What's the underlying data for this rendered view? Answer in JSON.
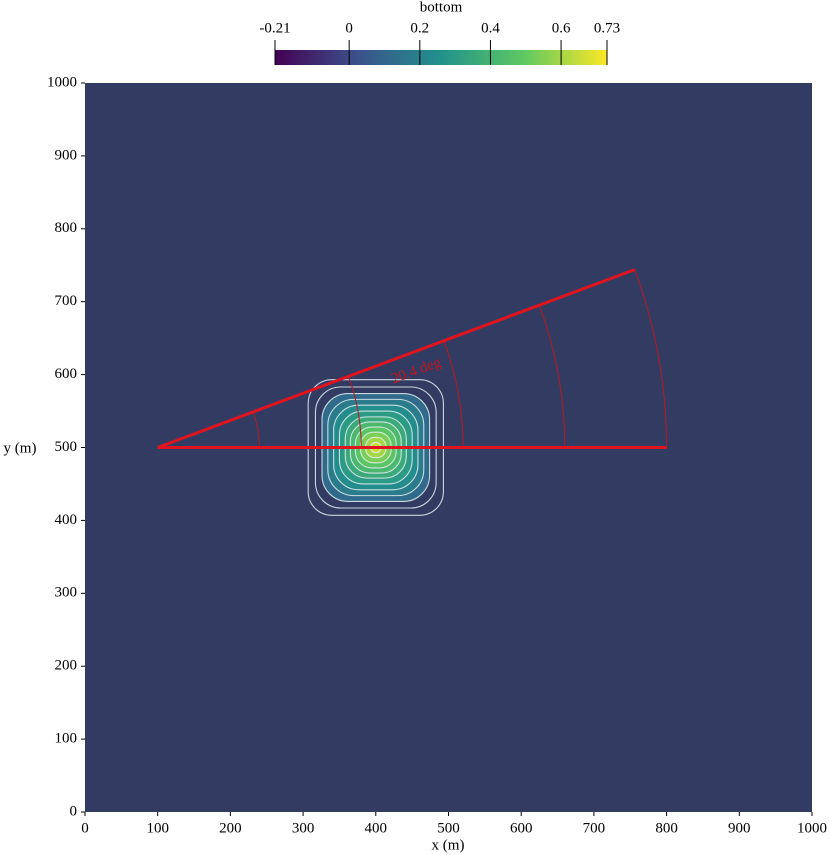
{
  "chart_data": {
    "type": "contour",
    "background": "#323c63",
    "colorbar": {
      "title": "bottom",
      "lim": [
        -0.21,
        0.73
      ],
      "ticks": [
        -0.21,
        0,
        0.2,
        0.4,
        0.6,
        0.73
      ]
    },
    "xlabel": "x (m)",
    "ylabel": "y (m)",
    "xlim": [
      0,
      1000
    ],
    "ylim": [
      0,
      1000
    ],
    "xticks": [
      0,
      100,
      200,
      300,
      400,
      500,
      600,
      700,
      800,
      900,
      1000
    ],
    "yticks": [
      0,
      100,
      200,
      300,
      400,
      500,
      600,
      700,
      800,
      900,
      1000
    ],
    "contour_center": [
      400,
      500
    ],
    "contours": [
      {
        "level": 0.01,
        "half_width": 93
      },
      {
        "level": 0.06,
        "half_width": 83
      },
      {
        "level": 0.12,
        "half_width": 74
      },
      {
        "level": 0.18,
        "half_width": 66
      },
      {
        "level": 0.24,
        "half_width": 58
      },
      {
        "level": 0.3,
        "half_width": 50
      },
      {
        "level": 0.36,
        "half_width": 42
      },
      {
        "level": 0.42,
        "half_width": 35
      },
      {
        "level": 0.48,
        "half_width": 28
      },
      {
        "level": 0.54,
        "half_width": 21
      },
      {
        "level": 0.6,
        "half_width": 14
      },
      {
        "level": 0.66,
        "half_width": 7
      }
    ],
    "protractor": {
      "origin": [
        100,
        500
      ],
      "length": 700,
      "angle": {
        "value": 20.4,
        "label": "20.4 deg"
      },
      "arc_radii": [
        140,
        280,
        420,
        560,
        700
      ],
      "color": "#e0141e"
    }
  }
}
